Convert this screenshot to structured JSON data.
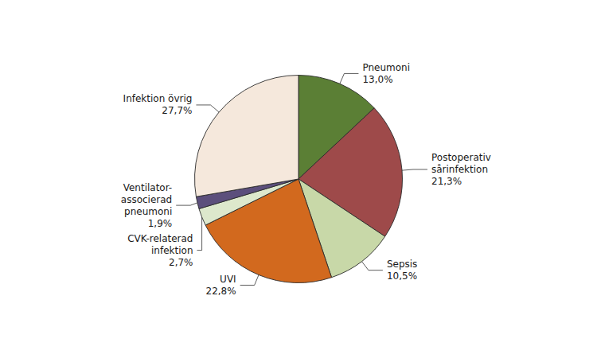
{
  "chart_data": {
    "type": "pie",
    "categories": [
      "Pneumoni",
      "Postoperativ\nsårinfektion",
      "Sepsis",
      "UVI",
      "CVK-relaterad\ninfektion",
      "Ventilator-\nassocierad\npneumoni",
      "Infektion övrig"
    ],
    "values": [
      13.0,
      21.3,
      10.5,
      22.8,
      2.7,
      1.9,
      27.7
    ],
    "value_labels": [
      "13,0%",
      "21,3%",
      "10,5%",
      "22,8%",
      "2,7%",
      "1,9%",
      "27,7%"
    ],
    "colors": [
      "#5b7f35",
      "#9e4a4a",
      "#c8d8a8",
      "#d2691e",
      "#dde8cc",
      "#5c4f7c",
      "#f5e8dc"
    ],
    "data_labels": true
  }
}
